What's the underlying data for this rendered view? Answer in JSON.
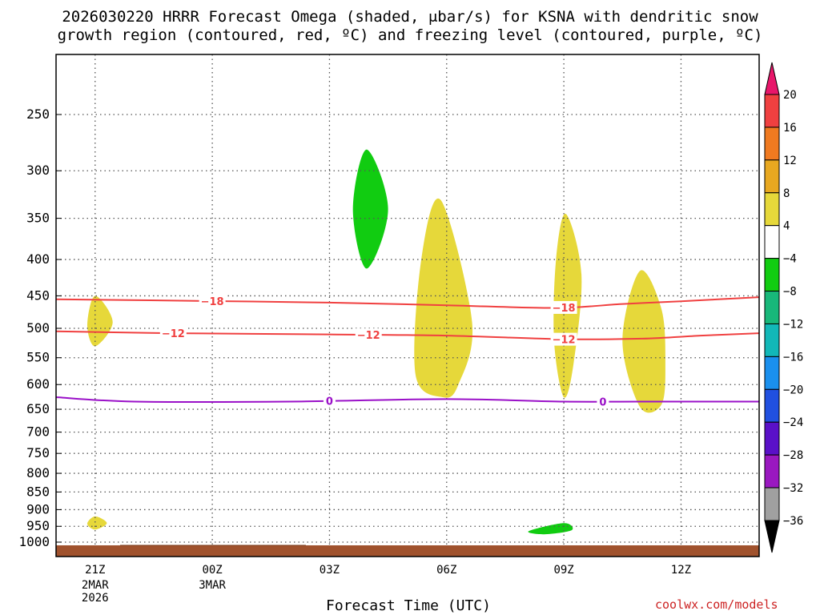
{
  "chart_data": {
    "type": "time-height cross section",
    "title_line1": "2026030220 HRRR Forecast Omega (shaded, μbar/s) for KSNA with dendritic snow",
    "title_line2": "growth region (contoured, red, ºC) and freezing level (contoured, purple, ºC)",
    "xlabel": "Forecast Time (UTC)",
    "credit": "coolwx.com/models",
    "x_ticks": [
      {
        "hour": 1,
        "label": "21Z",
        "sub": [
          "2MAR",
          "2026"
        ]
      },
      {
        "hour": 4,
        "label": "00Z",
        "sub": [
          "3MAR"
        ]
      },
      {
        "hour": 7,
        "label": "03Z",
        "sub": []
      },
      {
        "hour": 10,
        "label": "06Z",
        "sub": []
      },
      {
        "hour": 13,
        "label": "09Z",
        "sub": []
      },
      {
        "hour": 16,
        "label": "12Z",
        "sub": []
      }
    ],
    "x_range": [
      0,
      18
    ],
    "y_ticks": [
      250,
      300,
      350,
      400,
      450,
      500,
      550,
      600,
      650,
      700,
      750,
      800,
      850,
      900,
      950,
      1000
    ],
    "y_range_hPa": [
      200,
      1030
    ],
    "omega_colorbar": {
      "labels": [
        "20",
        "16",
        "12",
        "8",
        "4",
        "−4",
        "−8",
        "−12",
        "−16",
        "−20",
        "−24",
        "−28",
        "−32",
        "−36"
      ],
      "colors": [
        "#e8166a",
        "#f04040",
        "#f07a20",
        "#e8a820",
        "#e6d83a",
        "#ffffff",
        "#11cc11",
        "#18b87a",
        "#12b8b8",
        "#1a90ee",
        "#2050e0",
        "#5a10c8",
        "#9a18c0",
        "#a0a0a0",
        "#000000"
      ]
    },
    "omega_regions": [
      {
        "color": "#e6d83a",
        "points": [
          [
            1.0,
            450
          ],
          [
            1.45,
            490
          ],
          [
            1.0,
            530
          ],
          [
            0.8,
            495
          ]
        ]
      },
      {
        "color": "#e6d83a",
        "points": [
          [
            1.0,
            920
          ],
          [
            1.3,
            940
          ],
          [
            1.0,
            960
          ],
          [
            0.8,
            942
          ]
        ]
      },
      {
        "color": "#11cc11",
        "points": [
          [
            7.95,
            280
          ],
          [
            8.5,
            340
          ],
          [
            7.95,
            412
          ],
          [
            7.6,
            340
          ]
        ]
      },
      {
        "color": "#e6d83a",
        "points": [
          [
            9.85,
            330
          ],
          [
            10.65,
            490
          ],
          [
            10.3,
            600
          ],
          [
            9.9,
            625
          ],
          [
            9.2,
            580
          ],
          [
            9.35,
            400
          ]
        ]
      },
      {
        "color": "#e6d83a",
        "points": [
          [
            13.05,
            345
          ],
          [
            13.45,
            420
          ],
          [
            13.25,
            560
          ],
          [
            13.0,
            625
          ],
          [
            12.75,
            520
          ],
          [
            12.8,
            400
          ]
        ]
      },
      {
        "color": "#e6d83a",
        "points": [
          [
            14.95,
            415
          ],
          [
            15.5,
            470
          ],
          [
            15.6,
            560
          ],
          [
            15.5,
            640
          ],
          [
            14.95,
            645
          ],
          [
            14.5,
            520
          ]
        ]
      },
      {
        "color": "#11cc11",
        "points": [
          [
            12.1,
            965
          ],
          [
            13.0,
            940
          ],
          [
            13.2,
            962
          ],
          [
            12.5,
            975
          ]
        ]
      }
    ],
    "isotherms": [
      {
        "label": "−18",
        "color": "#f04040",
        "points": [
          [
            0,
            455
          ],
          [
            3,
            457
          ],
          [
            7,
            460
          ],
          [
            10,
            464
          ],
          [
            12.8,
            468
          ],
          [
            14.5,
            462
          ],
          [
            16,
            458
          ],
          [
            18,
            452
          ]
        ],
        "label_x": [
          4.0,
          13.0
        ]
      },
      {
        "label": "−12",
        "color": "#f04040",
        "points": [
          [
            0,
            505
          ],
          [
            3,
            508
          ],
          [
            7,
            510
          ],
          [
            10,
            512
          ],
          [
            13,
            518
          ],
          [
            15,
            517
          ],
          [
            16.5,
            512
          ],
          [
            18,
            508
          ]
        ],
        "label_x": [
          3.0,
          8.0,
          13.0
        ]
      },
      {
        "label": "0",
        "color": "#9a10c8",
        "points": [
          [
            0,
            625
          ],
          [
            2,
            634
          ],
          [
            6,
            634
          ],
          [
            10,
            629
          ],
          [
            13,
            634
          ],
          [
            15,
            634
          ],
          [
            18,
            634
          ]
        ],
        "label_x": [
          7.0,
          14.0
        ]
      }
    ],
    "terrain_color": "#a0522d"
  }
}
